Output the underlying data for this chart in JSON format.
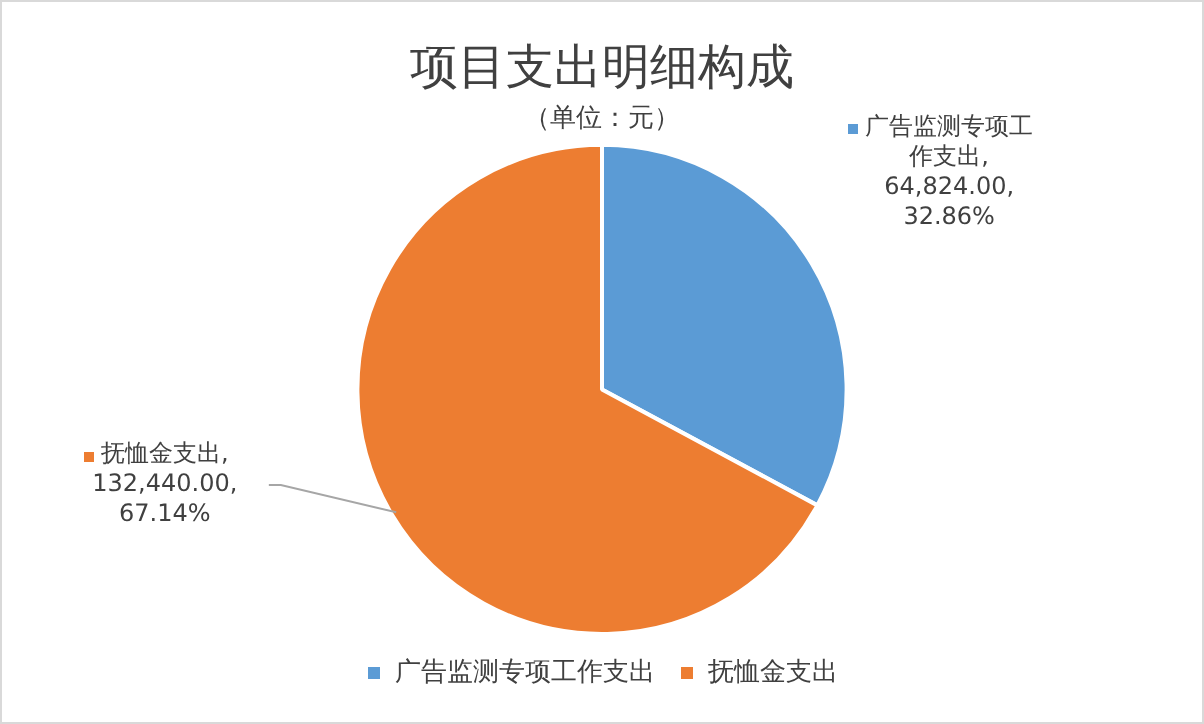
{
  "chart_data": {
    "type": "pie",
    "title": "项目支出明细构成",
    "subtitle": "（单位：元）",
    "categories": [
      "广告监测专项工作支出",
      "抚恤金支出"
    ],
    "values": [
      64824,
      132440
    ],
    "colors": [
      "#5b9bd5",
      "#ed7d31"
    ],
    "value_labels": [
      "广告监测专项工作支出,\n64,824.00,\n32.86%",
      "抚恤金支出,\n132,440.00,\n67.14%"
    ],
    "legend": "bottom"
  }
}
